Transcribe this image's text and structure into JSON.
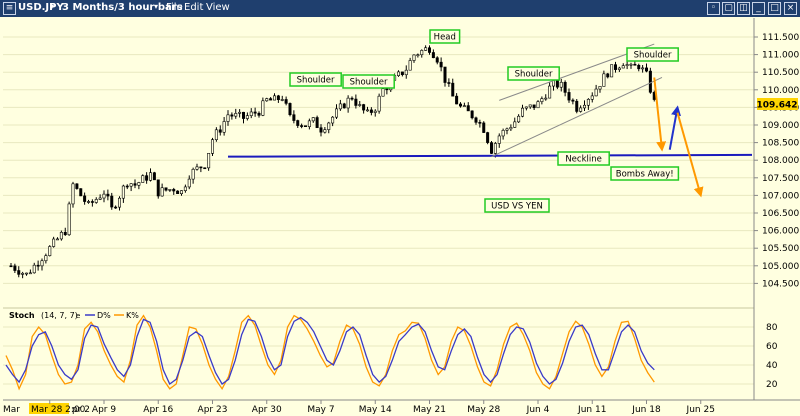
{
  "toolbar": {
    "symbol": "USD.JPY",
    "timeframe": "3 Months/3 hour bars",
    "menu_file": "File",
    "menu_edit": "Edit",
    "menu_view": "View"
  },
  "chart_data": [
    {
      "type": "candlestick",
      "title": "USD VS YEN",
      "symbol": "USD.JPY",
      "last_price": "109.642",
      "ylim": [
        104.3,
        111.55
      ],
      "y_ticks": [
        "111.500",
        "111.000",
        "110.500",
        "110.000",
        "109.500",
        "109.000",
        "108.500",
        "108.000",
        "107.500",
        "107.000",
        "106.500",
        "106.000",
        "105.500",
        "105.000",
        "104.500"
      ],
      "x_ticks": [
        "Mar 28 2:00",
        "pr 2",
        "Apr 9",
        "Apr 16",
        "Apr 23",
        "Apr 30",
        "May 7",
        "May 14",
        "May 21",
        "May 28",
        "Jun 4",
        "Jun 11",
        "Jun 18",
        "Jun 25"
      ],
      "x_start_label": "Mar",
      "price_path": [
        [
          "Mar 28",
          105.0
        ],
        [
          "Mar 30",
          104.75
        ],
        [
          "Apr 2",
          105.5
        ],
        [
          "Apr 4",
          106.0
        ],
        [
          "Apr 5",
          107.3
        ],
        [
          "Apr 7",
          106.7
        ],
        [
          "Apr 9",
          107.1
        ],
        [
          "Apr 10",
          106.6
        ],
        [
          "Apr 12",
          107.4
        ],
        [
          "Apr 13",
          107.3
        ],
        [
          "Apr 15",
          107.6
        ],
        [
          "Apr 16",
          107.1
        ],
        [
          "Apr 18",
          107.2
        ],
        [
          "Apr 19",
          107.1
        ],
        [
          "Apr 20",
          107.6
        ],
        [
          "Apr 22",
          107.9
        ],
        [
          "Apr 23",
          108.6
        ],
        [
          "Apr 24",
          108.9
        ],
        [
          "Apr 25",
          109.3
        ],
        [
          "Apr 27",
          109.2
        ],
        [
          "Apr 29",
          109.4
        ],
        [
          "Apr 30",
          109.7
        ],
        [
          "May 1",
          109.7
        ],
        [
          "May 2",
          109.8
        ],
        [
          "May 3",
          109.2
        ],
        [
          "May 5",
          109.0
        ],
        [
          "May 6",
          109.1
        ],
        [
          "May 7",
          108.9
        ],
        [
          "May 8",
          109.1
        ],
        [
          "May 10",
          109.6
        ],
        [
          "May 11",
          109.8
        ],
        [
          "May 12",
          109.5
        ],
        [
          "May 13",
          109.3
        ],
        [
          "May 14",
          109.5
        ],
        [
          "May 15",
          110.0
        ],
        [
          "May 16",
          110.2
        ],
        [
          "May 18",
          110.6
        ],
        [
          "May 19",
          111.0
        ],
        [
          "May 21",
          111.2
        ],
        [
          "May 22",
          110.9
        ],
        [
          "May 23",
          110.3
        ],
        [
          "May 24",
          109.8
        ],
        [
          "May 25",
          109.5
        ],
        [
          "May 27",
          109.2
        ],
        [
          "May 28",
          108.9
        ],
        [
          "May 29",
          108.3
        ],
        [
          "May 30",
          108.7
        ],
        [
          "Jun 1",
          109.1
        ],
        [
          "Jun 2",
          109.4
        ],
        [
          "Jun 4",
          109.6
        ],
        [
          "Jun 5",
          109.9
        ],
        [
          "Jun 6",
          110.2
        ],
        [
          "Jun 7",
          110.1
        ],
        [
          "Jun 8",
          109.8
        ],
        [
          "Jun 9",
          109.5
        ],
        [
          "Jun 11",
          109.9
        ],
        [
          "Jun 12",
          110.2
        ],
        [
          "Jun 13",
          110.5
        ],
        [
          "Jun 15",
          110.8
        ],
        [
          "Jun 16",
          110.6
        ],
        [
          "Jun 17",
          110.7
        ],
        [
          "Jun 18",
          110.4
        ],
        [
          "Jun 19",
          109.64
        ]
      ],
      "annotations": [
        {
          "text": "Head",
          "near": "May 21"
        },
        {
          "text": "Shoulder",
          "near": "May 1"
        },
        {
          "text": "Shoulder",
          "near": "May 12"
        },
        {
          "text": "Shoulder",
          "near": "Jun 5"
        },
        {
          "text": "Shoulder",
          "near": "Jun 19"
        },
        {
          "text": "Neckline",
          "level": 108.15
        },
        {
          "text": "Bombs Away!",
          "near": "Jun 18"
        }
      ],
      "overlays": {
        "neckline": {
          "from": [
            "Apr 25",
            108.1
          ],
          "to": [
            "Jul 2",
            108.15
          ]
        },
        "channel_upper": {
          "from": [
            "May 30",
            109.7
          ],
          "to": [
            "Jun 19",
            111.3
          ]
        },
        "channel_lower": {
          "from": [
            "May 29",
            108.1
          ],
          "to": [
            "Jun 20",
            110.35
          ]
        },
        "projection_1": [
          [
            "Jun 19",
            110.35
          ],
          [
            "Jun 20",
            108.3
          ]
        ],
        "projection_2": [
          [
            "Jun 21",
            108.3
          ],
          [
            "Jun 22",
            109.5
          ]
        ],
        "projection_3": [
          [
            "Jun 22",
            109.35
          ],
          [
            "Jun 25",
            107.0
          ]
        ]
      },
      "colors": {
        "background": "#ffffe0",
        "candles": "#000000",
        "neckline": "#1b1bbd",
        "annotation_border": "#22cc22",
        "projection": "#ff9900",
        "bullish_arrow": "#2233cc"
      }
    },
    {
      "type": "line",
      "title": "Stoch",
      "params": "(14, 7, 7)",
      "param_suffix": "e",
      "series": [
        {
          "name": "D%",
          "color": "#3a3ac8"
        },
        {
          "name": "K%",
          "color": "#ff9900"
        }
      ],
      "ylim": [
        10,
        95
      ],
      "y_ticks": [
        "80",
        "60",
        "40",
        "20"
      ],
      "d_values": [
        40,
        30,
        22,
        35,
        60,
        72,
        75,
        60,
        40,
        30,
        25,
        35,
        68,
        82,
        80,
        62,
        48,
        35,
        28,
        40,
        70,
        88,
        85,
        65,
        35,
        20,
        25,
        45,
        70,
        75,
        70,
        50,
        32,
        20,
        25,
        45,
        72,
        88,
        86,
        70,
        48,
        35,
        40,
        70,
        86,
        90,
        85,
        75,
        60,
        45,
        40,
        55,
        75,
        80,
        72,
        50,
        30,
        22,
        28,
        45,
        65,
        72,
        80,
        83,
        75,
        55,
        38,
        35,
        55,
        72,
        78,
        70,
        48,
        30,
        22,
        30,
        52,
        72,
        80,
        78,
        64,
        42,
        28,
        20,
        25,
        42,
        65,
        80,
        82,
        72,
        52,
        35,
        35,
        55,
        75,
        82,
        75,
        55,
        42,
        35
      ],
      "k_values": [
        50,
        35,
        15,
        30,
        70,
        80,
        72,
        50,
        30,
        20,
        22,
        40,
        78,
        85,
        75,
        55,
        40,
        28,
        22,
        45,
        82,
        92,
        80,
        55,
        25,
        15,
        20,
        50,
        80,
        78,
        62,
        40,
        25,
        15,
        28,
        55,
        85,
        92,
        82,
        60,
        40,
        30,
        45,
        80,
        92,
        88,
        78,
        65,
        50,
        38,
        42,
        65,
        82,
        78,
        62,
        38,
        22,
        18,
        30,
        55,
        72,
        76,
        85,
        84,
        68,
        45,
        30,
        38,
        65,
        80,
        76,
        60,
        38,
        22,
        18,
        35,
        62,
        80,
        84,
        72,
        55,
        32,
        20,
        15,
        28,
        52,
        75,
        86,
        80,
        62,
        40,
        28,
        38,
        65,
        85,
        86,
        68,
        45,
        32,
        22
      ]
    }
  ]
}
